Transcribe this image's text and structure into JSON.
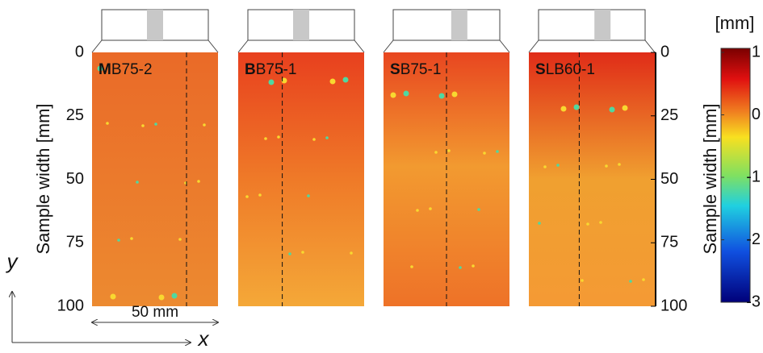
{
  "figure": {
    "panels": [
      {
        "bold": "M",
        "rest": "B75-2"
      },
      {
        "bold": "B",
        "rest": "B75-1"
      },
      {
        "bold": "S",
        "rest": "B75-1"
      },
      {
        "bold": "S",
        "rest": "LB60-1"
      }
    ],
    "y_axis_label": "Sample width [mm]",
    "ylim": [
      0,
      100
    ],
    "yticks": [
      0,
      25,
      50,
      75,
      100
    ],
    "scale_label": "50 mm",
    "axis_x": "x",
    "axis_y": "y",
    "colorbar": {
      "unit": "[mm]",
      "clim": [
        -3,
        1
      ],
      "ticks": [
        1,
        0,
        -1,
        -2,
        -3
      ]
    }
  }
}
